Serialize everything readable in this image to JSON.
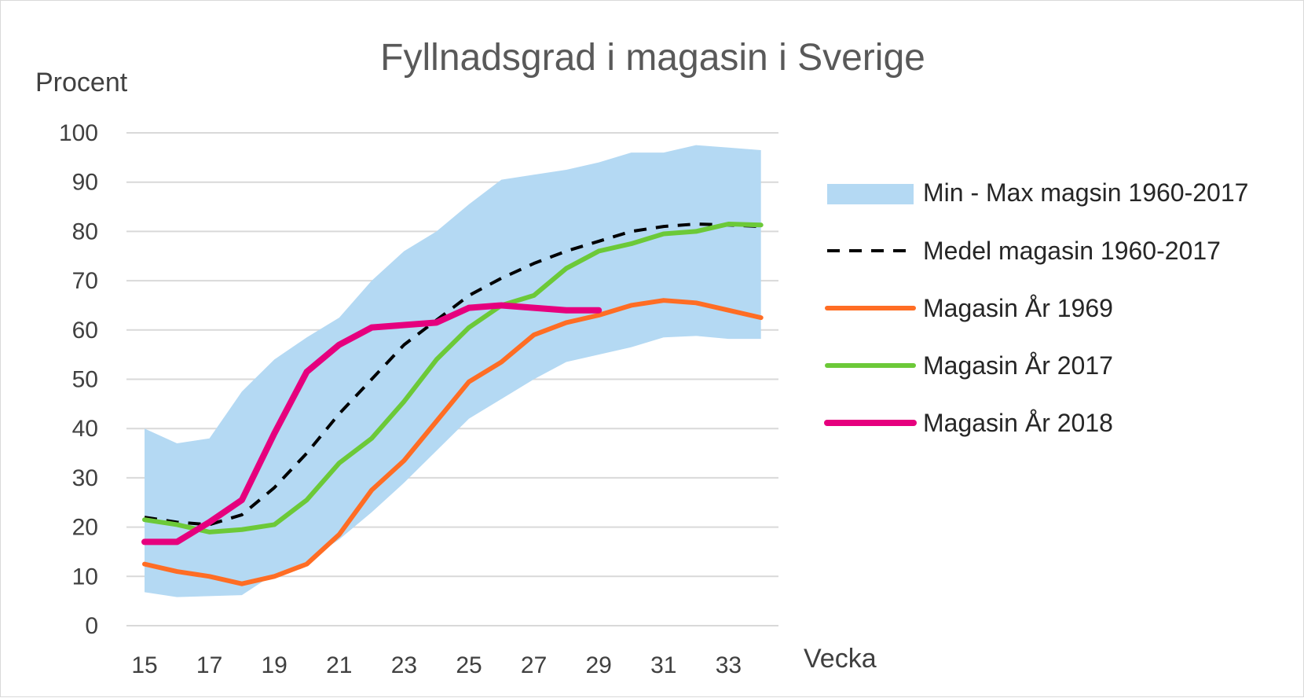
{
  "chart_data": {
    "type": "line",
    "title": "Fyllnadsgrad i magasin i Sverige",
    "ylabel": "Procent",
    "xlabel": "Vecka",
    "x": [
      15,
      16,
      17,
      18,
      19,
      20,
      21,
      22,
      23,
      24,
      25,
      26,
      27,
      28,
      29,
      30,
      31,
      32,
      33,
      34
    ],
    "x_tick_labels": [
      "15",
      "17",
      "19",
      "21",
      "23",
      "25",
      "27",
      "29",
      "31",
      "33"
    ],
    "x_tick_values": [
      15,
      17,
      19,
      21,
      23,
      25,
      27,
      29,
      31,
      33
    ],
    "y_tick_labels": [
      "0",
      "10",
      "20",
      "30",
      "40",
      "50",
      "60",
      "70",
      "80",
      "90",
      "100"
    ],
    "ylim": [
      0,
      100
    ],
    "grid": true,
    "legend_position": "right",
    "band": {
      "name": "Min - Max magsin 1960-2017",
      "color": "#b4d9f3",
      "x": [
        15,
        16,
        17,
        18,
        19,
        20,
        21,
        22,
        23,
        24,
        25,
        26,
        27,
        28,
        29,
        30,
        31,
        32,
        33,
        34
      ],
      "min": [
        6.8,
        5.8,
        6.0,
        6.2,
        10.5,
        13.0,
        17.5,
        23.0,
        29.0,
        35.5,
        42.0,
        46.0,
        50.0,
        53.5,
        55.0,
        56.5,
        58.5,
        58.8,
        58.2,
        58.2
      ],
      "max": [
        40.0,
        37.0,
        38.0,
        47.5,
        54.0,
        58.5,
        62.5,
        70.0,
        76.0,
        80.0,
        85.5,
        90.5,
        91.5,
        92.5,
        94.0,
        96.0,
        96.0,
        97.5,
        97.0,
        96.5
      ]
    },
    "series": [
      {
        "name": "Medel magasin 1960-2017",
        "color": "#000000",
        "dashed": true,
        "width": 4,
        "x": [
          15,
          16,
          17,
          18,
          19,
          20,
          21,
          22,
          23,
          24,
          25,
          26,
          27,
          28,
          29,
          30,
          31,
          32,
          33,
          34
        ],
        "values": [
          22.0,
          21.0,
          20.5,
          22.5,
          28.0,
          35.0,
          43.0,
          50.0,
          57.0,
          62.0,
          67.0,
          70.5,
          73.5,
          76.0,
          78.0,
          80.0,
          81.0,
          81.5,
          81.3,
          81.0
        ]
      },
      {
        "name": "Magasin  År 1969",
        "color": "#ff6d24",
        "dashed": false,
        "width": 6,
        "x": [
          15,
          16,
          17,
          18,
          19,
          20,
          21,
          22,
          23,
          24,
          25,
          26,
          27,
          28,
          29,
          30,
          31,
          32,
          33,
          34
        ],
        "values": [
          12.5,
          11.0,
          10.0,
          8.5,
          10.0,
          12.5,
          18.5,
          27.5,
          33.5,
          41.5,
          49.5,
          53.5,
          59.0,
          61.5,
          63.0,
          65.0,
          66.0,
          65.5,
          64.0,
          62.5
        ]
      },
      {
        "name": "Magasin  År 2017",
        "color": "#6cc938",
        "dashed": false,
        "width": 6,
        "x": [
          15,
          16,
          17,
          18,
          19,
          20,
          21,
          22,
          23,
          24,
          25,
          26,
          27,
          28,
          29,
          30,
          31,
          32,
          33,
          34
        ],
        "values": [
          21.5,
          20.5,
          19.0,
          19.5,
          20.5,
          25.5,
          33.0,
          38.0,
          45.5,
          54.0,
          60.5,
          65.0,
          67.0,
          72.5,
          76.0,
          77.5,
          79.5,
          80.0,
          81.5,
          81.3
        ]
      },
      {
        "name": "Magasin  År 2018",
        "color": "#e6007e",
        "dashed": false,
        "width": 8,
        "x": [
          15,
          16,
          17,
          18,
          19,
          20,
          21,
          22,
          23,
          24,
          25,
          26,
          27,
          28,
          29
        ],
        "values": [
          17.0,
          17.0,
          21.0,
          25.5,
          39.0,
          51.5,
          57.0,
          60.5,
          61.0,
          61.5,
          64.5,
          65.0,
          64.5,
          64.0,
          64.0
        ]
      }
    ]
  }
}
